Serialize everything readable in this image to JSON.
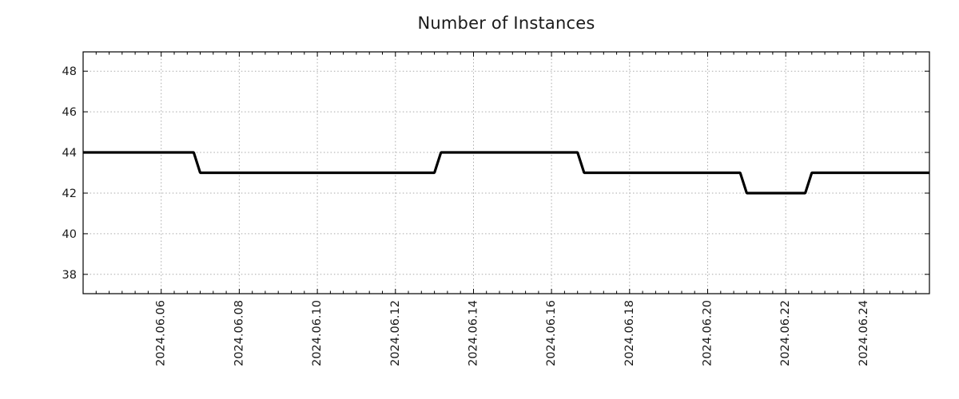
{
  "chart_data": {
    "type": "line",
    "title": "Number of Instances",
    "xlabel": "",
    "ylabel": "",
    "legend": "none",
    "grid": "dotted at major ticks, both axes",
    "x_tick_labels": [
      "2024.06.06",
      "2024.06.08",
      "2024.06.10",
      "2024.06.12",
      "2024.06.14",
      "2024.06.16",
      "2024.06.18",
      "2024.06.20",
      "2024.06.22",
      "2024.06.24"
    ],
    "y_tick_labels": [
      "38",
      "40",
      "42",
      "44",
      "46",
      "48"
    ],
    "xlim": [
      "2024-06-04 00:00",
      "2024-06-25 16:20"
    ],
    "ylim": [
      37.05,
      48.95
    ],
    "minor_x_tick_hours": 8,
    "series": [
      {
        "name": "instances",
        "color": "#000000",
        "points": [
          {
            "x": "2024-06-04 00:00",
            "y": 44
          },
          {
            "x": "2024-06-06 20:00",
            "y": 44
          },
          {
            "x": "2024-06-07 00:00",
            "y": 43
          },
          {
            "x": "2024-06-13 00:00",
            "y": 43
          },
          {
            "x": "2024-06-13 04:00",
            "y": 44
          },
          {
            "x": "2024-06-16 16:00",
            "y": 44
          },
          {
            "x": "2024-06-16 20:00",
            "y": 43
          },
          {
            "x": "2024-06-20 20:00",
            "y": 43
          },
          {
            "x": "2024-06-21 00:00",
            "y": 42
          },
          {
            "x": "2024-06-22 12:00",
            "y": 42
          },
          {
            "x": "2024-06-22 16:00",
            "y": 43
          },
          {
            "x": "2024-06-25 16:20",
            "y": 43
          }
        ]
      }
    ]
  },
  "style": {
    "background": "#ffffff",
    "axis_color": "#000000",
    "grid_color": "#aaaaaa",
    "tick_color": "#000000",
    "text_color": "#1a1a1a",
    "line_color": "#000000"
  }
}
